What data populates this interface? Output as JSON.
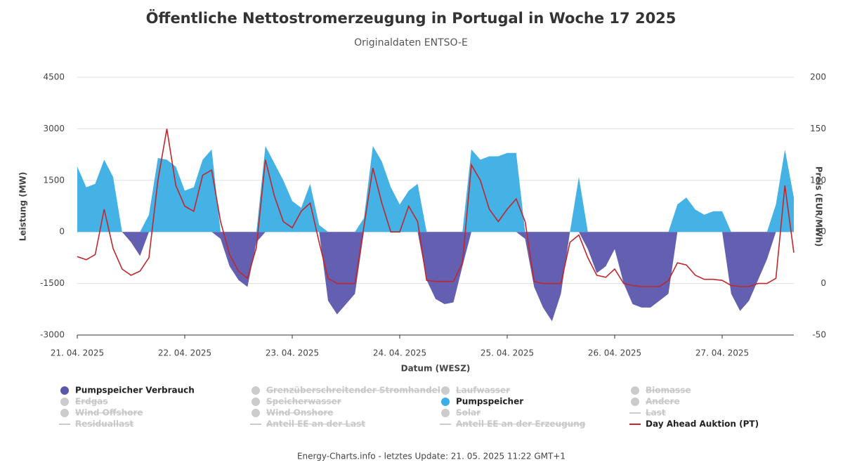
{
  "chart_data": {
    "type": "area",
    "title": "Öffentliche Nettostromerzeugung in Portugal in Woche 17 2025",
    "subtitle": "Originaldaten ENTSO-E",
    "xlabel": "Datum (WESZ)",
    "ylabel": "Leistung (MW)",
    "y2label": "Preis (EUR/MWh)",
    "footer": "Energy-Charts.info - letztes Update: 21. 05. 2025 11:22 GMT+1",
    "grid": true,
    "x": [
      0,
      2,
      4,
      6,
      8,
      10,
      12,
      14,
      16,
      18,
      20,
      22,
      24,
      26,
      28,
      30,
      32,
      34,
      36,
      38,
      40,
      42,
      44,
      46,
      48,
      50,
      52,
      54,
      56,
      58,
      60,
      62,
      64,
      66,
      68,
      70,
      72,
      74,
      76,
      78,
      80,
      82,
      84,
      86,
      88,
      90,
      92,
      94,
      96,
      98,
      100,
      102,
      104,
      106,
      108,
      110,
      112,
      114,
      116,
      118,
      120,
      122,
      124,
      126,
      128,
      130,
      132,
      134,
      136,
      138,
      140,
      142,
      144,
      146,
      148,
      150,
      152,
      154,
      156,
      158,
      160
    ],
    "xlim": [
      0,
      160
    ],
    "xticks": [
      {
        "value": 0,
        "label": "21. 04. 2025"
      },
      {
        "value": 24,
        "label": "22. 04. 2025"
      },
      {
        "value": 48,
        "label": "23. 04. 2025"
      },
      {
        "value": 72,
        "label": "24. 04. 2025"
      },
      {
        "value": 96,
        "label": "25. 04. 2025"
      },
      {
        "value": 120,
        "label": "26. 04. 2025"
      },
      {
        "value": 144,
        "label": "27. 04. 2025"
      }
    ],
    "ylim": [
      -3000,
      4500
    ],
    "yticks": [
      -3000,
      -1500,
      0,
      1500,
      3000,
      4500
    ],
    "y2lim": [
      -50,
      200
    ],
    "y2ticks": [
      -50,
      0,
      50,
      100,
      150,
      200
    ],
    "series": [
      {
        "name": "Pumpspeicher Verbrauch",
        "type": "area",
        "color": "#5b57ad",
        "values": [
          0,
          0,
          0,
          0,
          0,
          0,
          -300,
          -700,
          0,
          0,
          0,
          0,
          0,
          0,
          0,
          0,
          -200,
          -1000,
          -1400,
          -1600,
          -300,
          0,
          0,
          0,
          0,
          0,
          0,
          0,
          -2000,
          -2400,
          -2100,
          -1800,
          0,
          0,
          0,
          0,
          0,
          0,
          0,
          -1400,
          -1950,
          -2100,
          -2050,
          -1000,
          0,
          0,
          0,
          0,
          0,
          0,
          -200,
          -1600,
          -2200,
          -2600,
          -1800,
          0,
          0,
          -500,
          -1200,
          -1000,
          -500,
          -1500,
          -2100,
          -2200,
          -2200,
          -2000,
          -1800,
          0,
          0,
          0,
          0,
          0,
          0,
          -1800,
          -2300,
          -2000,
          -1400,
          -800,
          0,
          0,
          0
        ]
      },
      {
        "name": "Pumpspeicher",
        "type": "area",
        "color": "#3aaee4",
        "values": [
          1900,
          1300,
          1400,
          2100,
          1600,
          0,
          0,
          0,
          500,
          2150,
          2100,
          1900,
          1200,
          1300,
          2100,
          2400,
          0,
          0,
          0,
          0,
          0,
          2500,
          2000,
          1500,
          900,
          700,
          1400,
          200,
          0,
          0,
          0,
          0,
          400,
          2500,
          2050,
          1300,
          800,
          1200,
          1400,
          0,
          0,
          0,
          0,
          0,
          2400,
          2100,
          2200,
          2200,
          2300,
          2300,
          0,
          0,
          0,
          0,
          0,
          0,
          1600,
          0,
          0,
          0,
          0,
          0,
          0,
          0,
          0,
          0,
          0,
          800,
          1000,
          650,
          500,
          600,
          600,
          0,
          0,
          0,
          0,
          0,
          800,
          2400,
          1000
        ]
      },
      {
        "name": "Day Ahead Auktion (PT)",
        "type": "line",
        "axis": "y2",
        "color": "#c0272d",
        "values": [
          26,
          23,
          28,
          72,
          34,
          14,
          8,
          12,
          25,
          100,
          150,
          95,
          75,
          70,
          105,
          110,
          60,
          28,
          12,
          5,
          35,
          120,
          85,
          60,
          54,
          70,
          78,
          40,
          5,
          0,
          0,
          0,
          55,
          112,
          78,
          50,
          50,
          75,
          60,
          3,
          2,
          2,
          2,
          20,
          115,
          100,
          72,
          60,
          72,
          82,
          60,
          2,
          0,
          0,
          0,
          40,
          47,
          25,
          8,
          6,
          14,
          0,
          -2,
          -3,
          -3,
          -3,
          3,
          20,
          18,
          8,
          4,
          4,
          3,
          -2,
          -3,
          -3,
          0,
          0,
          5,
          95,
          30
        ]
      }
    ],
    "hidden_series": [
      {
        "name": "Grenzüberschreitender Stromhandel",
        "marker": "circle"
      },
      {
        "name": "Laufwasser",
        "marker": "circle"
      },
      {
        "name": "Biomasse",
        "marker": "circle"
      },
      {
        "name": "Erdgas",
        "marker": "circle"
      },
      {
        "name": "Speicherwasser",
        "marker": "circle"
      },
      {
        "name": "Andere",
        "marker": "circle"
      },
      {
        "name": "Wind Offshore",
        "marker": "circle"
      },
      {
        "name": "Wind Onshore",
        "marker": "circle"
      },
      {
        "name": "Solar",
        "marker": "circle"
      },
      {
        "name": "Last",
        "marker": "line"
      },
      {
        "name": "Residuallast",
        "marker": "line"
      },
      {
        "name": "Anteil EE an der Last",
        "marker": "line"
      },
      {
        "name": "Anteil EE an der Erzeugung",
        "marker": "line"
      }
    ]
  }
}
